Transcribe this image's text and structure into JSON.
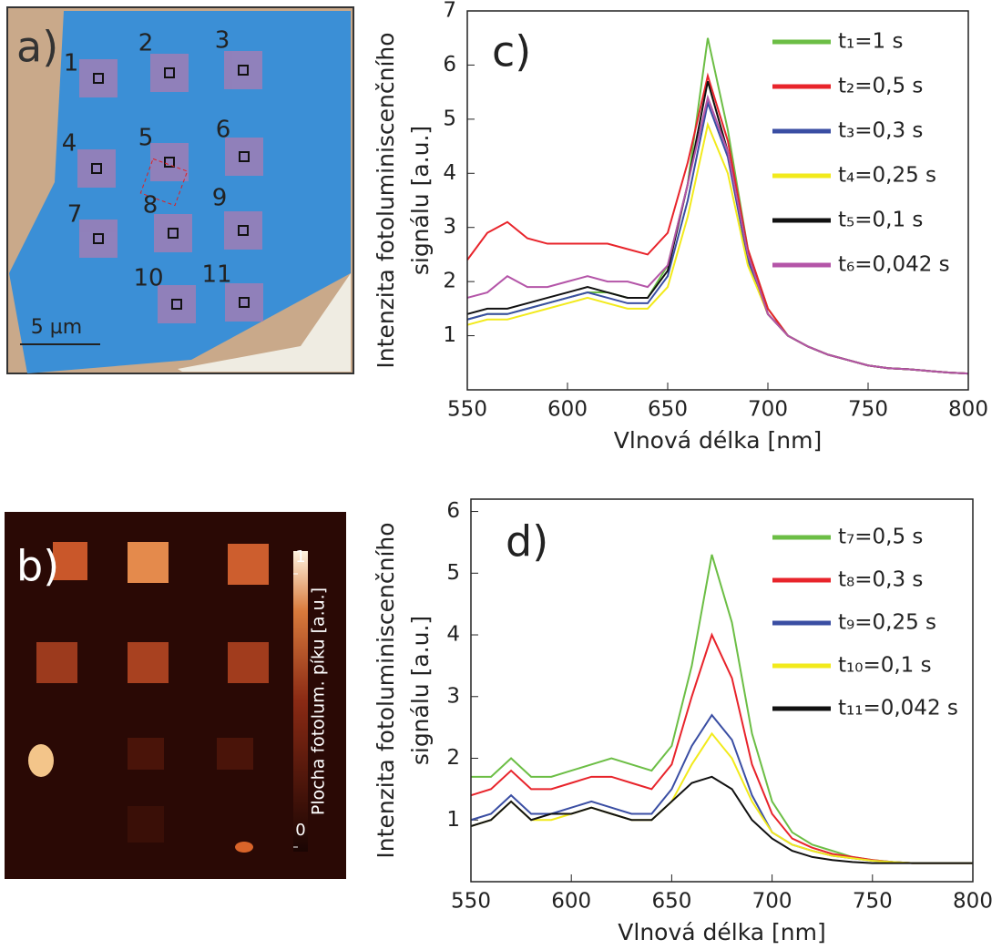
{
  "panel_a": {
    "label": "a)",
    "site_labels": [
      "1",
      "2",
      "3",
      "4",
      "5",
      "6",
      "7",
      "8",
      "9",
      "10",
      "11"
    ],
    "scale_bar": "5 µm"
  },
  "panel_b": {
    "label": "b)",
    "colorbar_title": "Plocha fotolum. píku [a.u.]",
    "colorbar_ticks": [
      0,
      1
    ]
  },
  "chart_data": [
    {
      "type": "line",
      "panel_label": "c)",
      "x_label": "Vlnová délka [nm]",
      "y_label": [
        "Intenzita fotoluminiscenčního",
        "signálu [a.u.]"
      ],
      "x": [
        550,
        560,
        570,
        580,
        590,
        600,
        610,
        620,
        630,
        640,
        650,
        660,
        670,
        680,
        690,
        700,
        710,
        720,
        730,
        740,
        750,
        760,
        770,
        780,
        790,
        800
      ],
      "xlim": [
        550,
        800
      ],
      "xticks": [
        550,
        600,
        650,
        700,
        750,
        800
      ],
      "ylim": [
        0,
        7
      ],
      "yticks": [
        1,
        2,
        3,
        4,
        5,
        6,
        7
      ],
      "series": [
        {
          "name": "t₁=1 s",
          "color": "#6cbe45",
          "values": [
            1.3,
            1.4,
            1.4,
            1.5,
            1.6,
            1.7,
            1.8,
            1.8,
            1.7,
            1.7,
            2.3,
            3.8,
            6.5,
            4.8,
            2.6,
            1.5,
            1.0,
            0.8,
            0.65,
            0.55,
            0.45,
            0.4,
            0.38,
            0.35,
            0.32,
            0.3
          ]
        },
        {
          "name": "t₂=0,5 s",
          "color": "#e8242b",
          "values": [
            2.4,
            2.9,
            3.1,
            2.8,
            2.7,
            2.7,
            2.7,
            2.7,
            2.6,
            2.5,
            2.9,
            4.2,
            5.8,
            4.6,
            2.6,
            1.5,
            1.0,
            0.8,
            0.65,
            0.55,
            0.45,
            0.4,
            0.38,
            0.35,
            0.32,
            0.3
          ]
        },
        {
          "name": "t₃=0,3 s",
          "color": "#3a4ea3",
          "values": [
            1.3,
            1.4,
            1.4,
            1.5,
            1.6,
            1.7,
            1.8,
            1.7,
            1.6,
            1.6,
            2.1,
            3.5,
            5.3,
            4.3,
            2.4,
            1.4,
            1.0,
            0.8,
            0.65,
            0.55,
            0.45,
            0.4,
            0.38,
            0.35,
            0.32,
            0.3
          ]
        },
        {
          "name": "t₄=0,25 s",
          "color": "#f2ea1c",
          "values": [
            1.2,
            1.3,
            1.3,
            1.4,
            1.5,
            1.6,
            1.7,
            1.6,
            1.5,
            1.5,
            1.9,
            3.2,
            4.9,
            4.0,
            2.3,
            1.4,
            1.0,
            0.8,
            0.65,
            0.55,
            0.45,
            0.4,
            0.38,
            0.35,
            0.32,
            0.3
          ]
        },
        {
          "name": "t₅=0,1 s",
          "color": "#111111",
          "values": [
            1.4,
            1.5,
            1.5,
            1.6,
            1.7,
            1.8,
            1.9,
            1.8,
            1.7,
            1.7,
            2.2,
            3.8,
            5.7,
            4.4,
            2.5,
            1.4,
            1.0,
            0.8,
            0.65,
            0.55,
            0.45,
            0.4,
            0.38,
            0.35,
            0.32,
            0.3
          ]
        },
        {
          "name": "t₆=0,042 s",
          "color": "#b455a8",
          "values": [
            1.7,
            1.8,
            2.1,
            1.9,
            1.9,
            2.0,
            2.1,
            2.0,
            2.0,
            1.9,
            2.3,
            3.8,
            5.4,
            4.4,
            2.5,
            1.4,
            1.0,
            0.8,
            0.65,
            0.55,
            0.45,
            0.4,
            0.38,
            0.35,
            0.32,
            0.3
          ]
        }
      ]
    },
    {
      "type": "line",
      "panel_label": "d)",
      "x_label": "Vlnová délka [nm]",
      "y_label": [
        "Intenzita fotoluminiscenčního",
        "signálu [a.u.]"
      ],
      "x": [
        550,
        560,
        570,
        580,
        590,
        600,
        610,
        620,
        630,
        640,
        650,
        660,
        670,
        680,
        690,
        700,
        710,
        720,
        730,
        740,
        750,
        760,
        770,
        780,
        790,
        800
      ],
      "xlim": [
        550,
        800
      ],
      "xticks": [
        550,
        600,
        650,
        700,
        750,
        800
      ],
      "ylim": [
        0,
        6.2
      ],
      "yticks": [
        1,
        2,
        3,
        4,
        5,
        6
      ],
      "series": [
        {
          "name": "t₇=0,5 s",
          "color": "#6cbe45",
          "values": [
            1.7,
            1.7,
            2.0,
            1.7,
            1.7,
            1.8,
            1.9,
            2.0,
            1.9,
            1.8,
            2.2,
            3.5,
            5.3,
            4.2,
            2.4,
            1.3,
            0.8,
            0.6,
            0.5,
            0.4,
            0.35,
            0.32,
            0.3,
            0.3,
            0.3,
            0.3
          ]
        },
        {
          "name": "t₈=0,3 s",
          "color": "#e8242b",
          "values": [
            1.4,
            1.5,
            1.8,
            1.5,
            1.5,
            1.6,
            1.7,
            1.7,
            1.6,
            1.5,
            1.9,
            3.0,
            4.0,
            3.3,
            1.9,
            1.1,
            0.7,
            0.55,
            0.45,
            0.4,
            0.35,
            0.32,
            0.3,
            0.3,
            0.3,
            0.3
          ]
        },
        {
          "name": "t₉=0,25 s",
          "color": "#3a4ea3",
          "values": [
            1.0,
            1.1,
            1.4,
            1.1,
            1.1,
            1.2,
            1.3,
            1.2,
            1.1,
            1.1,
            1.5,
            2.2,
            2.7,
            2.3,
            1.4,
            0.8,
            0.6,
            0.5,
            0.42,
            0.38,
            0.34,
            0.32,
            0.3,
            0.3,
            0.3,
            0.3
          ]
        },
        {
          "name": "t₁₀=0,1 s",
          "color": "#f2ea1c",
          "values": [
            0.9,
            1.0,
            1.3,
            1.0,
            1.0,
            1.1,
            1.2,
            1.1,
            1.0,
            1.0,
            1.3,
            1.9,
            2.4,
            2.0,
            1.3,
            0.8,
            0.6,
            0.5,
            0.42,
            0.38,
            0.34,
            0.32,
            0.3,
            0.3,
            0.3,
            0.3
          ]
        },
        {
          "name": "t₁₁=0,042 s",
          "color": "#111111",
          "values": [
            0.9,
            1.0,
            1.3,
            1.0,
            1.1,
            1.1,
            1.2,
            1.1,
            1.0,
            1.0,
            1.3,
            1.6,
            1.7,
            1.5,
            1.0,
            0.7,
            0.5,
            0.4,
            0.35,
            0.32,
            0.3,
            0.3,
            0.3,
            0.3,
            0.3,
            0.3
          ]
        }
      ]
    }
  ]
}
